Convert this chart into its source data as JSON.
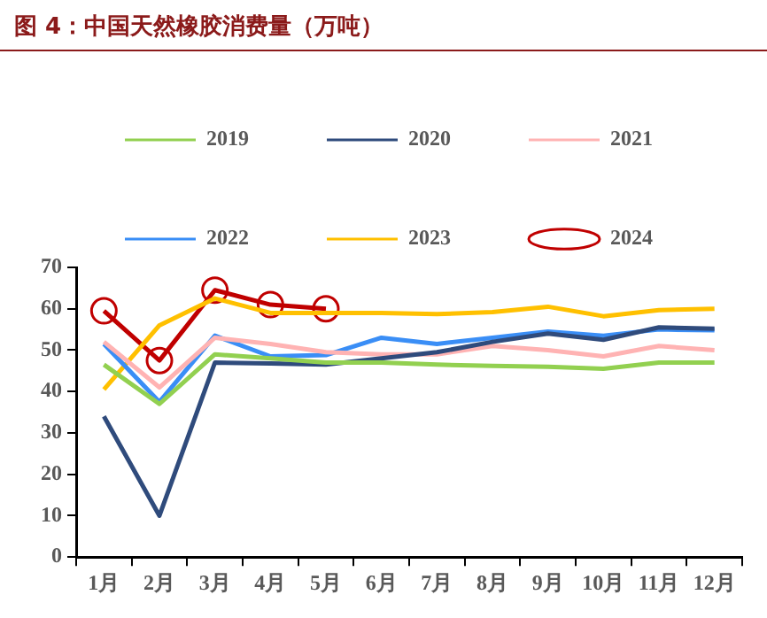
{
  "chart_data": {
    "type": "line",
    "title": "图 4：中国天然橡胶消费量（万吨）",
    "categories": [
      "1月",
      "2月",
      "3月",
      "4月",
      "5月",
      "6月",
      "7月",
      "8月",
      "9月",
      "10月",
      "11月",
      "12月"
    ],
    "series": [
      {
        "name": "2019",
        "color": "#92d050",
        "marker": "none",
        "values": [
          46.5,
          37,
          49,
          48,
          47,
          47,
          46.5,
          46.2,
          46,
          45.5,
          47,
          47
        ]
      },
      {
        "name": "2020",
        "color": "#2f4b7c",
        "marker": "none",
        "values": [
          34,
          10,
          47,
          46.8,
          46.5,
          48,
          49.5,
          52,
          54,
          52.5,
          55.5,
          55.2
        ]
      },
      {
        "name": "2021",
        "color": "#ffb3b3",
        "marker": "none",
        "values": [
          52,
          41,
          53,
          51.5,
          49.5,
          49,
          49,
          51,
          50,
          48.5,
          51,
          50
        ]
      },
      {
        "name": "2022",
        "color": "#3a8ef6",
        "marker": "none",
        "values": [
          51.5,
          37.5,
          53.5,
          48.5,
          48.8,
          53,
          51.5,
          53,
          54.5,
          53.5,
          55,
          54.8
        ]
      },
      {
        "name": "2023",
        "color": "#ffc000",
        "marker": "none",
        "values": [
          40.5,
          56,
          62.5,
          59,
          59,
          59,
          58.7,
          59.2,
          60.5,
          58.2,
          59.7,
          60
        ]
      },
      {
        "name": "2024",
        "color": "#c00000",
        "marker": "circle",
        "values": [
          59.5,
          47.5,
          64.5,
          61,
          60,
          null,
          null,
          null,
          null,
          null,
          null,
          null
        ]
      }
    ],
    "ylim": [
      0,
      70
    ],
    "yticks": [
      0,
      10,
      20,
      30,
      40,
      50,
      60,
      70
    ],
    "grid": false,
    "legend": "top",
    "line_style": "solid"
  }
}
